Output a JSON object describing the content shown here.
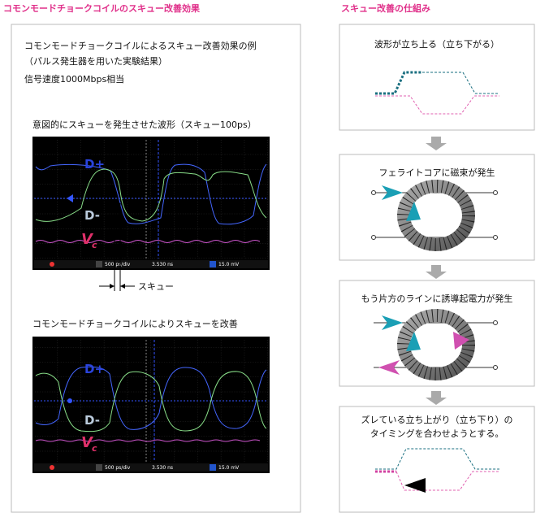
{
  "left": {
    "title": "コモンモードチョークコイルのスキュー改善効果",
    "intro": [
      "コモンモードチョークコイルによるスキュー改善効果の例",
      "（パルス発生器を用いた実験結果）",
      "信号速度1000Mbps相当"
    ],
    "scope1": {
      "caption": "意図的にスキューを発生させた波形（スキュー100ps）",
      "labels": {
        "d_plus": "D+",
        "d_minus": "D-",
        "vc_main": "V",
        "vc_sub": "c"
      },
      "status": [
        "500 ps/div",
        "3.530 ns",
        "15.0 mV"
      ]
    },
    "skew_label": "スキュー",
    "scope2": {
      "caption": "コモンモードチョークコイルによりスキューを改善",
      "labels": {
        "d_plus": "D+",
        "d_minus": "D-",
        "vc_main": "V",
        "vc_sub": "c"
      },
      "status": [
        "500 ps/div",
        "3.530 ns",
        "15.0 mV"
      ]
    }
  },
  "right": {
    "title": "スキュー改善の仕組み",
    "steps": [
      {
        "lines": [
          "波形が立ち上る（立ち下がる）"
        ]
      },
      {
        "lines": [
          "フェライトコアに磁束が発生"
        ]
      },
      {
        "lines": [
          "もう片方のラインに誘導起電力が発生"
        ]
      },
      {
        "lines": [
          "ズレている立ち上がり（立ち下り）の",
          "タイミングを合わせようとする。"
        ]
      }
    ]
  }
}
